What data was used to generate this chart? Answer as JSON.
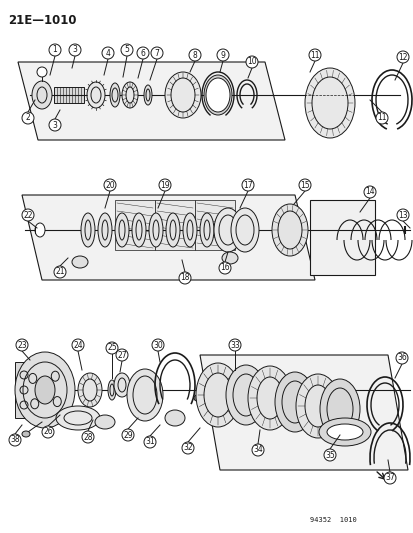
{
  "title": "21E—1010",
  "watermark": "94352  1010",
  "bg_color": "#ffffff",
  "line_color": "#1a1a1a",
  "figsize": [
    4.14,
    5.33
  ],
  "dpi": 100
}
